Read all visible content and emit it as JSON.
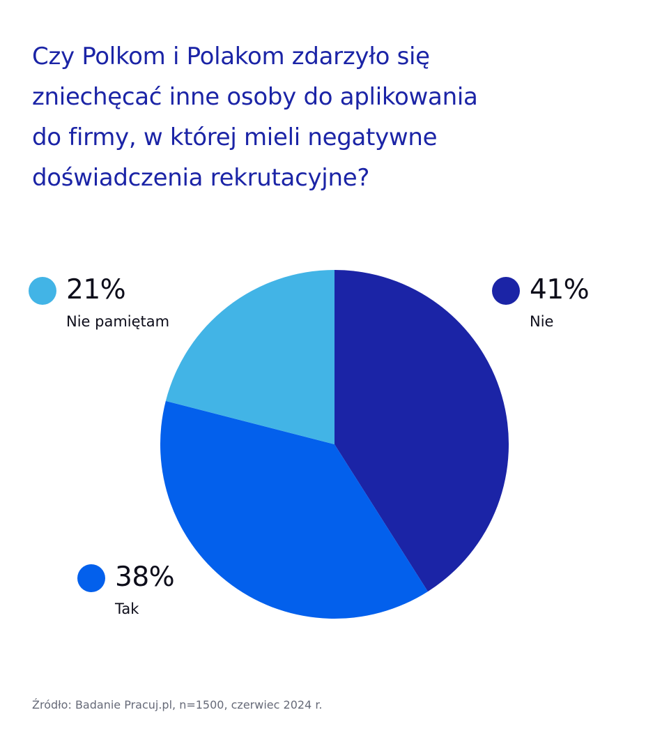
{
  "title_lines": [
    "Czy Polkom i Polakom zdarzyło się",
    "zniechęcać inne osoby do aplikowania",
    "do firmy, w której mieli negatywne",
    "doświadczenia rekrutacyjne?"
  ],
  "source": "Źródło: Badanie Pracuj.pl, n=1500, czerwiec 2024 r.",
  "chart_data": {
    "type": "pie",
    "title": "Czy Polkom i Polakom zdarzyło się zniechęcać inne osoby do aplikowania do firmy, w której mieli negatywne doświadczenia rekrutacyjne?",
    "start_angle": "12 o'clock, clockwise",
    "slices": [
      {
        "label": "Nie",
        "value": 41,
        "value_label": "41%",
        "color": "#1b24a6"
      },
      {
        "label": "Tak",
        "value": 38,
        "value_label": "38%",
        "color": "#0360ec"
      },
      {
        "label": "Nie pamiętam",
        "value": 21,
        "value_label": "21%",
        "color": "#42b4e6"
      }
    ]
  }
}
